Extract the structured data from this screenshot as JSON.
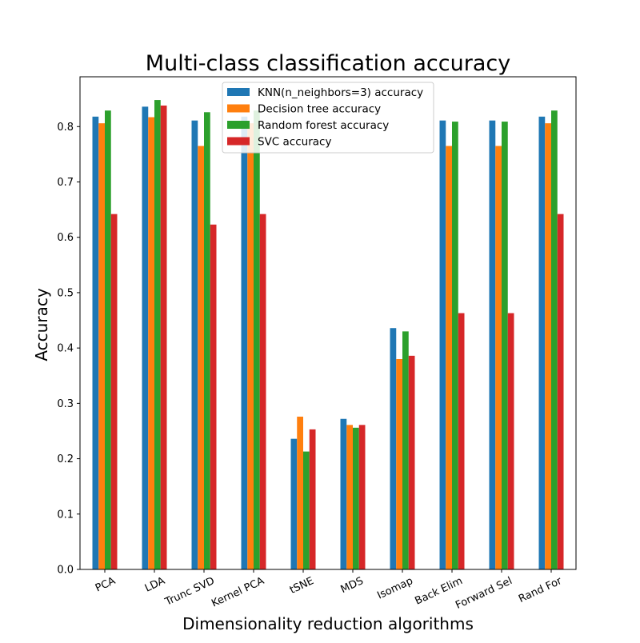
{
  "chart_data": {
    "type": "bar",
    "title": "Multi-class classification accuracy",
    "xlabel": "Dimensionality reduction algorithms",
    "ylabel": "Accuracy",
    "ylim": [
      0,
      0.89
    ],
    "yticks": [
      "0.0",
      "0.1",
      "0.2",
      "0.3",
      "0.4",
      "0.5",
      "0.6",
      "0.7",
      "0.8"
    ],
    "grid": false,
    "legend_position": "top-center",
    "categories": [
      "PCA",
      "LDA",
      "Trunc SVD",
      "Kernel PCA",
      "tSNE",
      "MDS",
      "Isomap",
      "Back Elim",
      "Forward Sel",
      "Rand For"
    ],
    "series": [
      {
        "name": "KNN(n_neighbors=3) accuracy",
        "color": "#1f77b4",
        "values": [
          0.818,
          0.836,
          0.811,
          0.818,
          0.236,
          0.272,
          0.436,
          0.811,
          0.811,
          0.818
        ]
      },
      {
        "name": "Decision tree accuracy",
        "color": "#ff7f0e",
        "values": [
          0.806,
          0.817,
          0.765,
          0.806,
          0.276,
          0.261,
          0.38,
          0.765,
          0.765,
          0.806
        ]
      },
      {
        "name": "Random forest accuracy",
        "color": "#2ca02c",
        "values": [
          0.829,
          0.848,
          0.826,
          0.829,
          0.213,
          0.256,
          0.43,
          0.809,
          0.809,
          0.829
        ]
      },
      {
        "name": "SVC accuracy",
        "color": "#d62728",
        "values": [
          0.642,
          0.838,
          0.623,
          0.642,
          0.253,
          0.261,
          0.386,
          0.463,
          0.463,
          0.642
        ]
      }
    ]
  }
}
